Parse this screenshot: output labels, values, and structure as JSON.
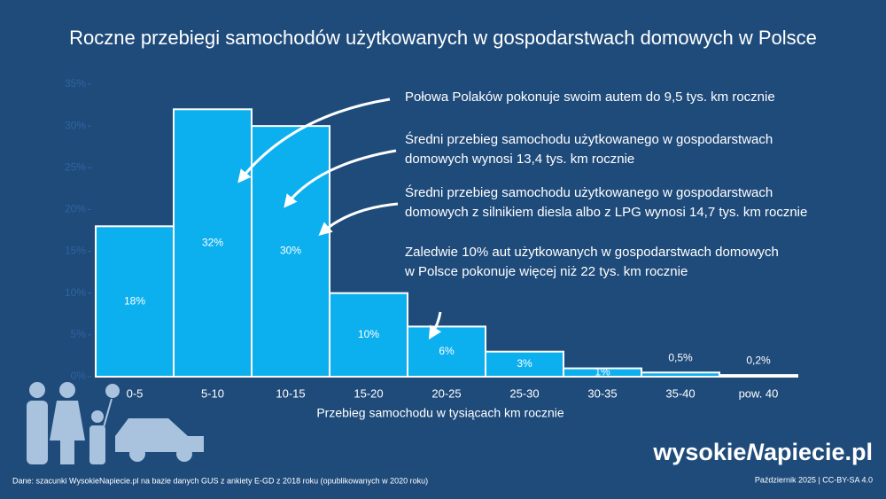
{
  "chart_data": {
    "type": "bar",
    "title": "Roczne przebiegi samochodów użytkowanych w gospodarstwach domowych w Polsce",
    "x_label": "Przebieg samochodu w tysiącach km rocznie",
    "categories": [
      "0-5",
      "5-10",
      "10-15",
      "15-20",
      "20-25",
      "25-30",
      "30-35",
      "35-40",
      "pow. 40"
    ],
    "values": [
      18,
      32,
      30,
      10,
      6,
      3,
      1,
      0.5,
      0.2
    ],
    "value_labels": [
      "18%",
      "32%",
      "30%",
      "10%",
      "6%",
      "3%",
      "1%",
      "0,5%",
      "0,2%"
    ],
    "color": "#0db0ef",
    "ylim": [
      0,
      35
    ],
    "yticks": [
      {
        "value": 0,
        "label": "0%"
      },
      {
        "value": 5,
        "label": "5%"
      },
      {
        "value": 10,
        "label": "10%"
      },
      {
        "value": 15,
        "label": "15%"
      },
      {
        "value": 20,
        "label": "20%"
      },
      {
        "value": 25,
        "label": "25%"
      },
      {
        "value": 30,
        "label": "30%"
      },
      {
        "value": 35,
        "label": "35%"
      }
    ],
    "annotations": [
      [
        "Połowa Polaków pokonuje swoim autem do 9,5 tys. km rocznie"
      ],
      [
        "Średni przebieg samochodu użytkowanego w gospodarstwach",
        "domowych wynosi 13,4 tys. km rocznie"
      ],
      [
        "Średni przebieg samochodu użytkowanego w gospodarstwach",
        "domowych z silnikiem diesla albo z LPG wynosi 14,7 tys. km rocznie"
      ],
      [
        "Zaledwie 10% aut użytkowanych w gospodarstwach domowych",
        "w Polsce pokonuje więcej niż 22 tys. km rocznie"
      ]
    ],
    "source": "Dane: szacunki WysokieNapiecie.pl na bazie danych GUS z ankiety E-GD z 2018 roku (opublikowanych w 2020 roku)",
    "footer": "Październik 2025  |  CC-BY-SA 4.0",
    "logo": [
      "wysokie",
      "N",
      "apiecie.pl"
    ]
  }
}
